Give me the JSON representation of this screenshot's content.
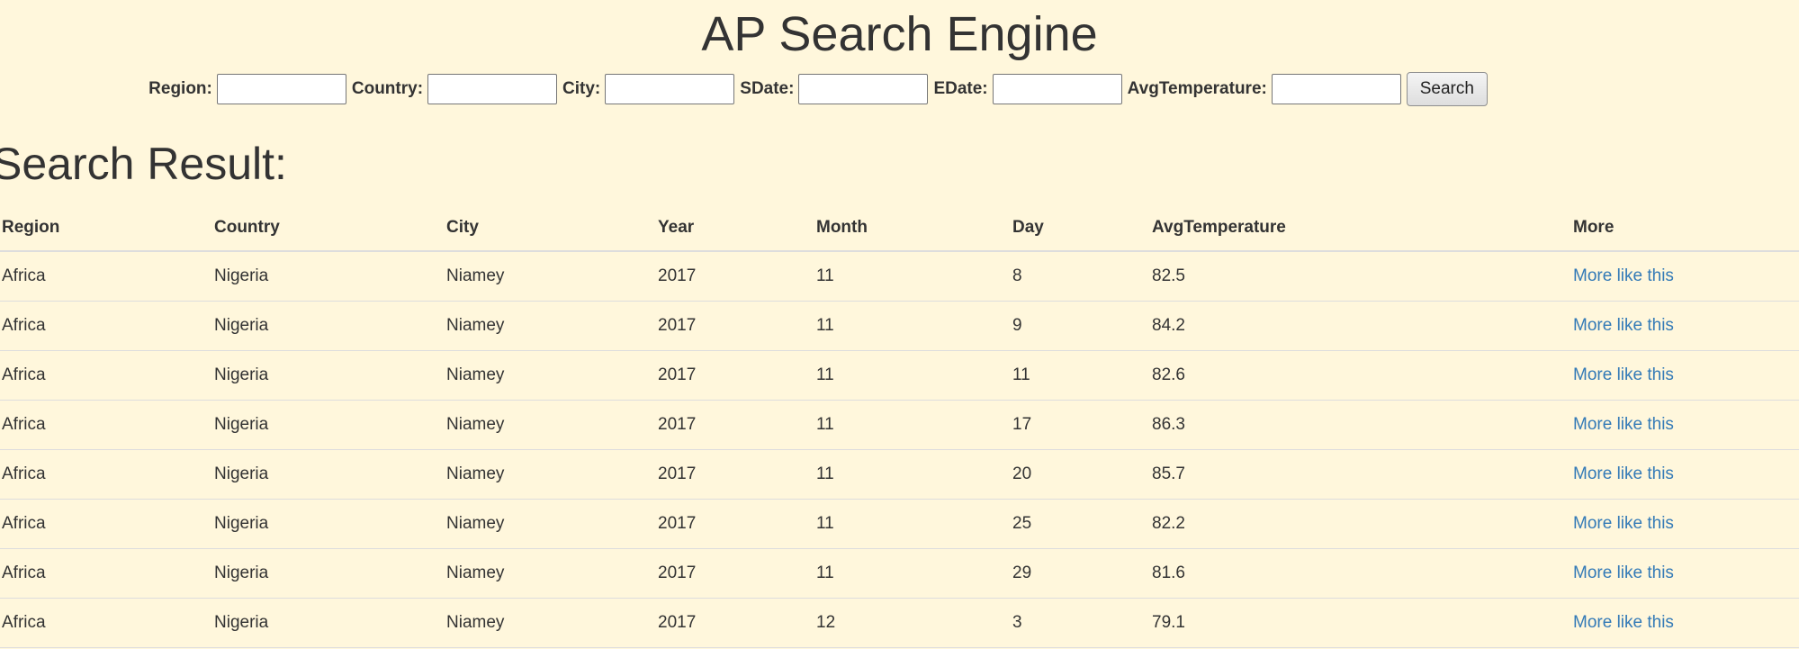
{
  "header": {
    "title": "AP Search Engine"
  },
  "search_form": {
    "fields": [
      {
        "label": "Region:",
        "value": ""
      },
      {
        "label": "Country:",
        "value": ""
      },
      {
        "label": "City:",
        "value": ""
      },
      {
        "label": "SDate:",
        "value": ""
      },
      {
        "label": "EDate:",
        "value": ""
      },
      {
        "label": "AvgTemperature:",
        "value": ""
      }
    ],
    "submit_label": "Search"
  },
  "results": {
    "heading": "Search Result:",
    "columns": [
      "Region",
      "Country",
      "City",
      "Year",
      "Month",
      "Day",
      "AvgTemperature",
      "More"
    ],
    "link_color": "#337ab7",
    "rows": [
      [
        "Africa",
        "Nigeria",
        "Niamey",
        "2017",
        "11",
        "8",
        "82.5",
        "More like this"
      ],
      [
        "Africa",
        "Nigeria",
        "Niamey",
        "2017",
        "11",
        "9",
        "84.2",
        "More like this"
      ],
      [
        "Africa",
        "Nigeria",
        "Niamey",
        "2017",
        "11",
        "11",
        "82.6",
        "More like this"
      ],
      [
        "Africa",
        "Nigeria",
        "Niamey",
        "2017",
        "11",
        "17",
        "86.3",
        "More like this"
      ],
      [
        "Africa",
        "Nigeria",
        "Niamey",
        "2017",
        "11",
        "20",
        "85.7",
        "More like this"
      ],
      [
        "Africa",
        "Nigeria",
        "Niamey",
        "2017",
        "11",
        "25",
        "82.2",
        "More like this"
      ],
      [
        "Africa",
        "Nigeria",
        "Niamey",
        "2017",
        "11",
        "29",
        "81.6",
        "More like this"
      ],
      [
        "Africa",
        "Nigeria",
        "Niamey",
        "2017",
        "12",
        "3",
        "79.1",
        "More like this"
      ]
    ]
  }
}
